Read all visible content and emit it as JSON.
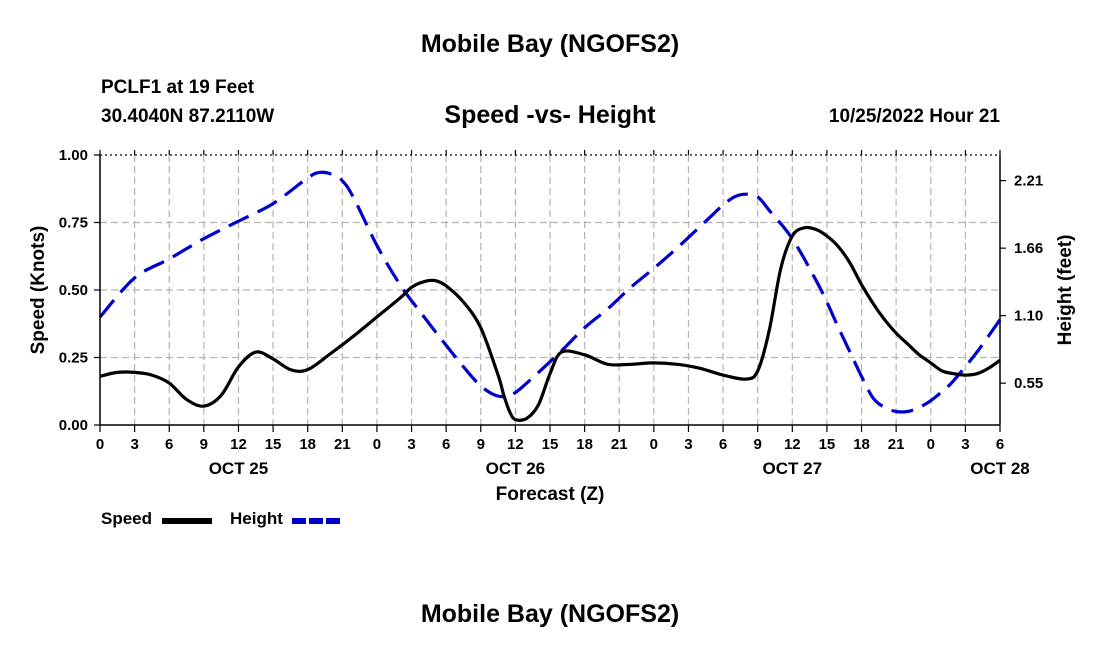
{
  "header": {
    "title": "Mobile Bay (NGOFS2)",
    "station": "PCLF1 at 19 Feet",
    "coords": "30.4040N  87.2110W",
    "chart_title": "Speed -vs- Height",
    "timestamp": "10/25/2022 Hour 21"
  },
  "footer": {
    "title": "Mobile Bay (NGOFS2)"
  },
  "legend": {
    "speed_label": "Speed",
    "height_label": "Height",
    "speed_color": "#000000",
    "height_color": "#0000cc"
  },
  "chart_data": {
    "type": "line",
    "title": "Speed -vs- Height",
    "xlabel": "Forecast (Z)",
    "ylabel": "Speed (Knots)",
    "y2label": "Height (feet)",
    "x_hour_ticks": [
      "0",
      "3",
      "6",
      "9",
      "12",
      "15",
      "18",
      "21",
      "0",
      "3",
      "6",
      "9",
      "12",
      "15",
      "18",
      "21",
      "0",
      "3",
      "6",
      "9",
      "12",
      "15",
      "18",
      "21",
      "0",
      "3",
      "6"
    ],
    "x_date_labels": [
      {
        "label": "OCT 25",
        "hour_offset": 12
      },
      {
        "label": "OCT 26",
        "hour_offset": 36
      },
      {
        "label": "OCT 27",
        "hour_offset": 60
      },
      {
        "label": "OCT 28",
        "hour_offset": 78
      }
    ],
    "x_range_hours_since_oct25_00z": [
      0,
      78
    ],
    "ylim": [
      0,
      1.0
    ],
    "yticks": [
      "0.00",
      "0.25",
      "0.50",
      "0.75",
      "1.00"
    ],
    "y2ticks": [
      {
        "label": "0.55",
        "speed_axis_value": 0.155
      },
      {
        "label": "1.10",
        "speed_axis_value": 0.405
      },
      {
        "label": "1.66",
        "speed_axis_value": 0.655
      },
      {
        "label": "2.21",
        "speed_axis_value": 0.905
      }
    ],
    "grid": true,
    "legend_position": "bottom-left",
    "series": [
      {
        "name": "Speed",
        "axis": "left",
        "color": "#000000",
        "style": "solid",
        "x": [
          0,
          1.5,
          3,
          4.5,
          6,
          7.5,
          9,
          10.5,
          12,
          13.5,
          15,
          16.5,
          18,
          20,
          22,
          24,
          26,
          27,
          28,
          29,
          30,
          31.5,
          33,
          34.5,
          35,
          35.5,
          36,
          37,
          38,
          39,
          40,
          42,
          44,
          46,
          48,
          50,
          52,
          54,
          56,
          57,
          58,
          59,
          60,
          61,
          62,
          63,
          64,
          65,
          66,
          67,
          68,
          69,
          70,
          71,
          72,
          73,
          74,
          75,
          76,
          77,
          78
        ],
        "values": [
          0.18,
          0.195,
          0.195,
          0.185,
          0.155,
          0.095,
          0.07,
          0.11,
          0.215,
          0.27,
          0.245,
          0.205,
          0.205,
          0.265,
          0.33,
          0.4,
          0.47,
          0.51,
          0.53,
          0.535,
          0.515,
          0.455,
          0.36,
          0.185,
          0.11,
          0.05,
          0.02,
          0.025,
          0.075,
          0.19,
          0.27,
          0.26,
          0.225,
          0.225,
          0.23,
          0.225,
          0.21,
          0.185,
          0.17,
          0.2,
          0.35,
          0.58,
          0.7,
          0.73,
          0.725,
          0.7,
          0.66,
          0.6,
          0.52,
          0.45,
          0.39,
          0.34,
          0.3,
          0.26,
          0.23,
          0.2,
          0.19,
          0.185,
          0.19,
          0.21,
          0.24
        ]
      },
      {
        "name": "Height",
        "axis": "right",
        "color": "#0000cc",
        "style": "dashed",
        "x": [
          0,
          3,
          6,
          9,
          12,
          15,
          18,
          19,
          20,
          21,
          22,
          24,
          26,
          28,
          30,
          32,
          33,
          34,
          35,
          36,
          38,
          40,
          42,
          44,
          46,
          48,
          50,
          52,
          53,
          54,
          55,
          56,
          57,
          58,
          60,
          62,
          63,
          64,
          65,
          66,
          67,
          68,
          69,
          70,
          71,
          72,
          73,
          74,
          76,
          78
        ],
        "values": [
          0.4,
          0.545,
          0.615,
          0.69,
          0.755,
          0.82,
          0.915,
          0.935,
          0.93,
          0.905,
          0.84,
          0.665,
          0.52,
          0.405,
          0.295,
          0.19,
          0.145,
          0.115,
          0.105,
          0.12,
          0.195,
          0.275,
          0.36,
          0.43,
          0.51,
          0.58,
          0.655,
          0.735,
          0.775,
          0.815,
          0.845,
          0.855,
          0.845,
          0.795,
          0.69,
          0.54,
          0.455,
          0.36,
          0.27,
          0.18,
          0.1,
          0.065,
          0.05,
          0.05,
          0.065,
          0.09,
          0.125,
          0.165,
          0.27,
          0.39
        ]
      }
    ]
  }
}
